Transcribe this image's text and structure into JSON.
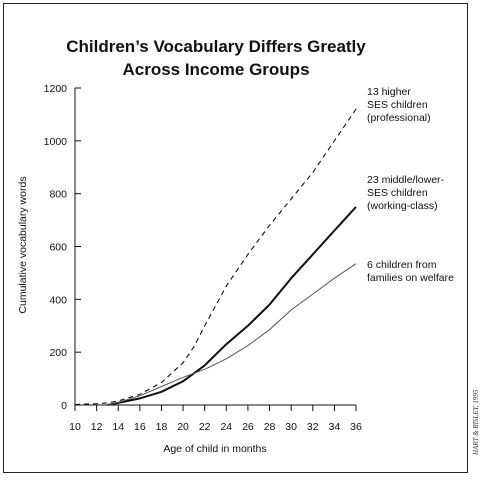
{
  "chart_data": {
    "type": "line",
    "title_lines": [
      "Children’s Vocabulary Differs Greatly",
      "Across Income Groups"
    ],
    "xlabel": "Age of child in months",
    "ylabel": "Cumulative vocabulary words",
    "xlim": [
      10,
      36
    ],
    "ylim": [
      0,
      1200
    ],
    "xticks": [
      10,
      12,
      14,
      16,
      18,
      20,
      22,
      24,
      26,
      28,
      30,
      32,
      34,
      36
    ],
    "yticks": [
      0,
      200,
      400,
      600,
      800,
      1000,
      1200
    ],
    "grid": false,
    "series": [
      {
        "name": "13 higher SES children (professional)",
        "label_lines": [
          "13 higher",
          "SES children",
          "(professional)"
        ],
        "style": "dashed",
        "x": [
          10,
          12,
          13,
          14,
          16,
          18,
          20,
          21,
          22,
          24,
          26,
          28,
          30,
          32,
          34,
          36
        ],
        "y": [
          2,
          5,
          8,
          15,
          40,
          85,
          160,
          220,
          300,
          450,
          570,
          680,
          780,
          880,
          1000,
          1120
        ]
      },
      {
        "name": "23 middle/lower-SES children (working-class)",
        "label_lines": [
          "23 middle/lower-",
          "SES children",
          "(working-class)"
        ],
        "style": "bold",
        "x": [
          13,
          14,
          16,
          18,
          20,
          22,
          24,
          26,
          28,
          30,
          32,
          34,
          36
        ],
        "y": [
          0,
          8,
          25,
          50,
          90,
          150,
          230,
          300,
          380,
          480,
          570,
          660,
          750
        ]
      },
      {
        "name": "6 children from families on welfare",
        "label_lines": [
          "6 children from",
          "families on welfare"
        ],
        "style": "thin",
        "x": [
          13,
          14,
          16,
          18,
          20,
          22,
          24,
          26,
          28,
          30,
          32,
          34,
          36
        ],
        "y": [
          0,
          10,
          35,
          70,
          105,
          135,
          175,
          225,
          285,
          360,
          420,
          480,
          535
        ]
      }
    ]
  },
  "credit": "HART & RISLEY, 1995"
}
